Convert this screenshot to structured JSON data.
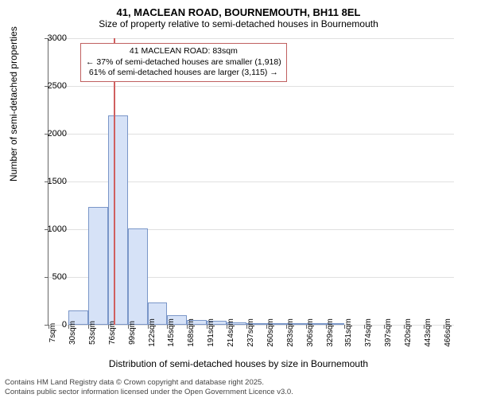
{
  "title": "41, MACLEAN ROAD, BOURNEMOUTH, BH11 8EL",
  "subtitle": "Size of property relative to semi-detached houses in Bournemouth",
  "ylabel": "Number of semi-detached properties",
  "xlabel": "Distribution of semi-detached houses by size in Bournemouth",
  "chart": {
    "type": "histogram",
    "ylim": [
      0,
      3000
    ],
    "yticks": [
      0,
      500,
      1000,
      1500,
      2000,
      2500,
      3000
    ],
    "xticks": [
      7,
      30,
      53,
      76,
      99,
      122,
      145,
      168,
      191,
      214,
      237,
      260,
      283,
      306,
      329,
      351,
      374,
      397,
      420,
      443,
      466
    ],
    "xtick_unit": "sqm",
    "xlim": [
      7,
      478
    ],
    "bar_color": "#d6e2f7",
    "bar_border": "#7a96c8",
    "grid_color": "#e0e0e0",
    "background": "#ffffff",
    "bars": [
      {
        "x0": 7,
        "x1": 30,
        "y": 0
      },
      {
        "x0": 30,
        "x1": 53,
        "y": 150
      },
      {
        "x0": 53,
        "x1": 76,
        "y": 1230
      },
      {
        "x0": 76,
        "x1": 99,
        "y": 2190
      },
      {
        "x0": 99,
        "x1": 122,
        "y": 1010
      },
      {
        "x0": 122,
        "x1": 145,
        "y": 230
      },
      {
        "x0": 145,
        "x1": 168,
        "y": 100
      },
      {
        "x0": 168,
        "x1": 191,
        "y": 50
      },
      {
        "x0": 191,
        "x1": 214,
        "y": 40
      },
      {
        "x0": 214,
        "x1": 237,
        "y": 25
      },
      {
        "x0": 237,
        "x1": 260,
        "y": 20
      },
      {
        "x0": 260,
        "x1": 283,
        "y": 8
      },
      {
        "x0": 283,
        "x1": 306,
        "y": 8
      },
      {
        "x0": 306,
        "x1": 329,
        "y": 5
      },
      {
        "x0": 329,
        "x1": 351,
        "y": 5
      }
    ],
    "refline_x": 83,
    "refline_color": "#d06060",
    "annotation": {
      "line1": "41 MACLEAN ROAD: 83sqm",
      "line2": "← 37% of semi-detached houses are smaller (1,918)",
      "line3": "61% of semi-detached houses are larger (3,115) →",
      "border_color": "#c06060"
    }
  },
  "footer1": "Contains HM Land Registry data © Crown copyright and database right 2025.",
  "footer2": "Contains public sector information licensed under the Open Government Licence v3.0."
}
